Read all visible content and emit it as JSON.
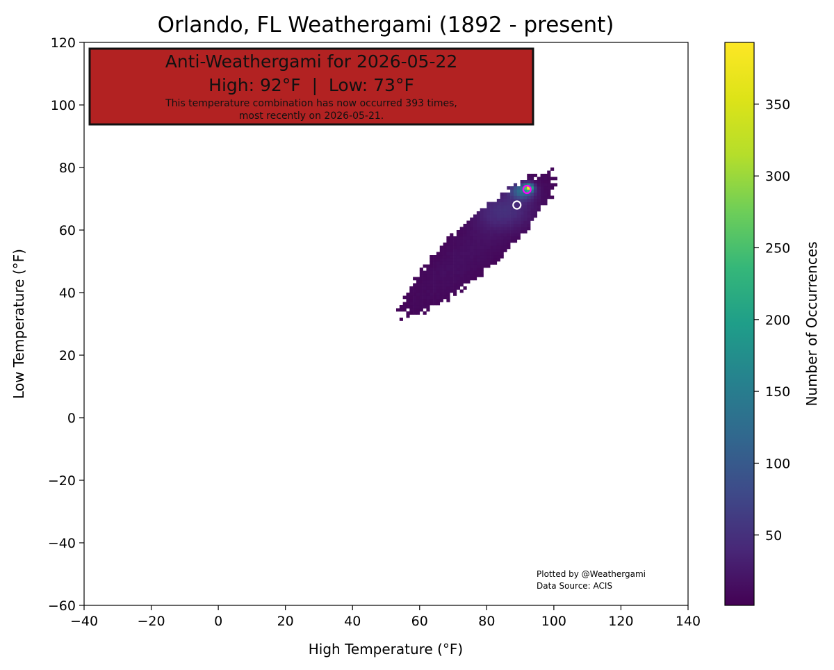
{
  "chart_data": {
    "type": "heatmap",
    "title": "Orlando, FL Weathergami (1892 - present)",
    "xlabel": "High Temperature (°F)",
    "ylabel": "Low Temperature (°F)",
    "xlim": [
      -40,
      140
    ],
    "ylim": [
      -60,
      120
    ],
    "xticks": [
      "−40",
      "−20",
      "0",
      "20",
      "40",
      "60",
      "80",
      "100",
      "120",
      "140"
    ],
    "yticks": [
      "−60",
      "−40",
      "−20",
      "0",
      "20",
      "40",
      "60",
      "80",
      "100",
      "120"
    ],
    "grid": false,
    "colormap": "viridis",
    "colorbar": {
      "label": "Number of Occurrences",
      "range": [
        1,
        393
      ],
      "ticks": [
        "50",
        "100",
        "150",
        "200",
        "250",
        "300",
        "350"
      ],
      "tick_values": [
        50,
        100,
        150,
        200,
        250,
        300,
        350
      ]
    },
    "distribution": {
      "description_of_shape": "elongated diagonal cloud of high/low pairs",
      "high_range": [
        36,
        104
      ],
      "low_range": [
        17,
        82
      ],
      "peak": {
        "high": 92,
        "low": 73,
        "count": 393
      }
    },
    "markers": [
      {
        "name": "anti-weathergami-point",
        "high": 92,
        "low": 73,
        "style": "magenta ring"
      },
      {
        "name": "comparison-point",
        "high": 89,
        "low": 68,
        "style": "white ring"
      }
    ],
    "annotation": {
      "line1": "Anti-Weathergami for 2026-05-22",
      "line2": "High: 92°F  |  Low: 73°F",
      "line3": "This temperature combination has now occurred 393 times,",
      "line4": "most recently on 2026-05-21.",
      "background": "#b22222"
    },
    "credit": {
      "line1": "Plotted by @Weathergami",
      "line2": "Data Source: ACIS"
    }
  }
}
